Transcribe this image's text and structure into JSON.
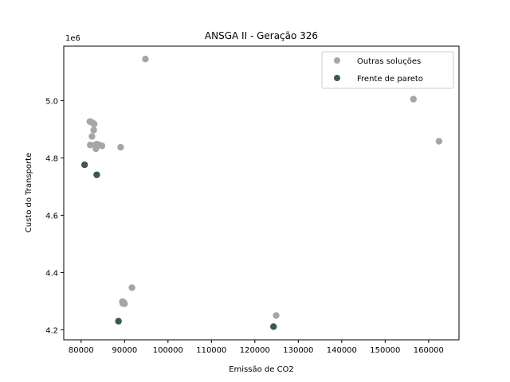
{
  "chart_data": {
    "type": "scatter",
    "title": "ANSGA II - Geração 326",
    "xlabel": "Emissão de CO2",
    "ylabel": "Custo do Transporte",
    "y_offset_label": "1e6",
    "xlim": [
      76000,
      167000
    ],
    "ylim": [
      4.165,
      5.19
    ],
    "x_ticks": [
      80000,
      90000,
      100000,
      110000,
      120000,
      130000,
      140000,
      150000,
      160000
    ],
    "x_tick_labels": [
      "80000",
      "90000",
      "100000",
      "110000",
      "120000",
      "130000",
      "140000",
      "150000",
      "160000"
    ],
    "y_ticks": [
      4.2,
      4.4,
      4.6,
      4.8,
      5.0
    ],
    "y_tick_labels": [
      "4.2",
      "4.4",
      "4.6",
      "4.8",
      "5.0"
    ],
    "grid": false,
    "legend_position": "top-right",
    "series": [
      {
        "name": "Outras soluções",
        "color": "#a6a6a6",
        "points": [
          [
            94800,
            5.145
          ],
          [
            156500,
            5.005
          ],
          [
            162400,
            4.858
          ],
          [
            82000,
            4.927
          ],
          [
            82300,
            4.925
          ],
          [
            82700,
            4.922
          ],
          [
            83000,
            4.918
          ],
          [
            82900,
            4.897
          ],
          [
            82500,
            4.875
          ],
          [
            82100,
            4.845
          ],
          [
            83200,
            4.845
          ],
          [
            83600,
            4.848
          ],
          [
            84200,
            4.845
          ],
          [
            84800,
            4.842
          ],
          [
            83400,
            4.832
          ],
          [
            89100,
            4.837
          ],
          [
            91700,
            4.347
          ],
          [
            89500,
            4.298
          ],
          [
            89800,
            4.296
          ],
          [
            89600,
            4.292
          ],
          [
            90000,
            4.291
          ],
          [
            124900,
            4.25
          ]
        ]
      },
      {
        "name": "Frente de pareto",
        "color": "#3b5a4d",
        "points": [
          [
            80800,
            4.776
          ],
          [
            83600,
            4.741
          ],
          [
            88600,
            4.23
          ],
          [
            124300,
            4.211
          ]
        ]
      }
    ]
  }
}
